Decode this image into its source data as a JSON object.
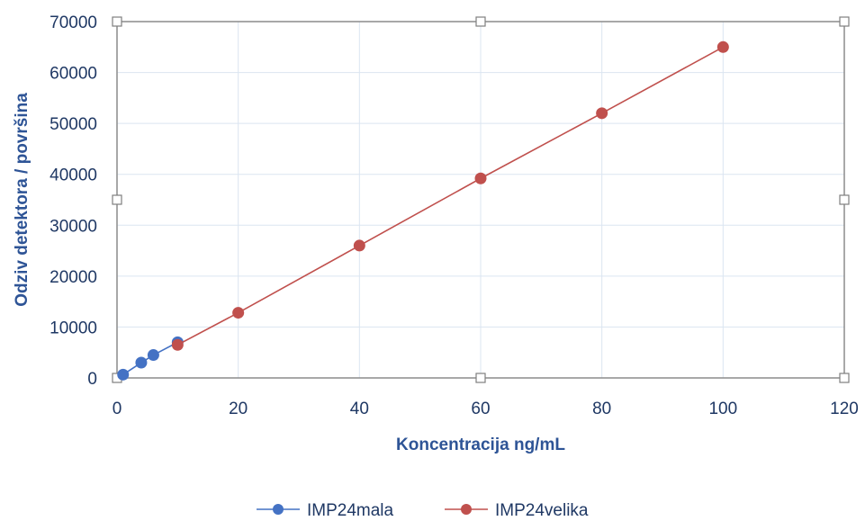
{
  "chart_data": {
    "type": "scatter",
    "title": "",
    "xlabel": "Koncentracija ng/mL",
    "ylabel": "Odziv detektora / površina",
    "xlim": [
      0,
      120
    ],
    "ylim": [
      0,
      70000
    ],
    "xticks": [
      0,
      20,
      40,
      60,
      80,
      100,
      120
    ],
    "yticks": [
      0,
      10000,
      20000,
      30000,
      40000,
      50000,
      60000,
      70000
    ],
    "grid": true,
    "legend_position": "bottom",
    "series": [
      {
        "name": "IMP24mala",
        "color": "#4472c4",
        "points": [
          [
            1,
            650
          ],
          [
            4,
            3000
          ],
          [
            6,
            4500
          ],
          [
            10,
            7000
          ]
        ]
      },
      {
        "name": "IMP24velika",
        "color": "#c0504d",
        "points": [
          [
            10,
            6500
          ],
          [
            20,
            12800
          ],
          [
            40,
            26000
          ],
          [
            60,
            39200
          ],
          [
            80,
            52000
          ],
          [
            100,
            65000
          ]
        ]
      }
    ]
  }
}
